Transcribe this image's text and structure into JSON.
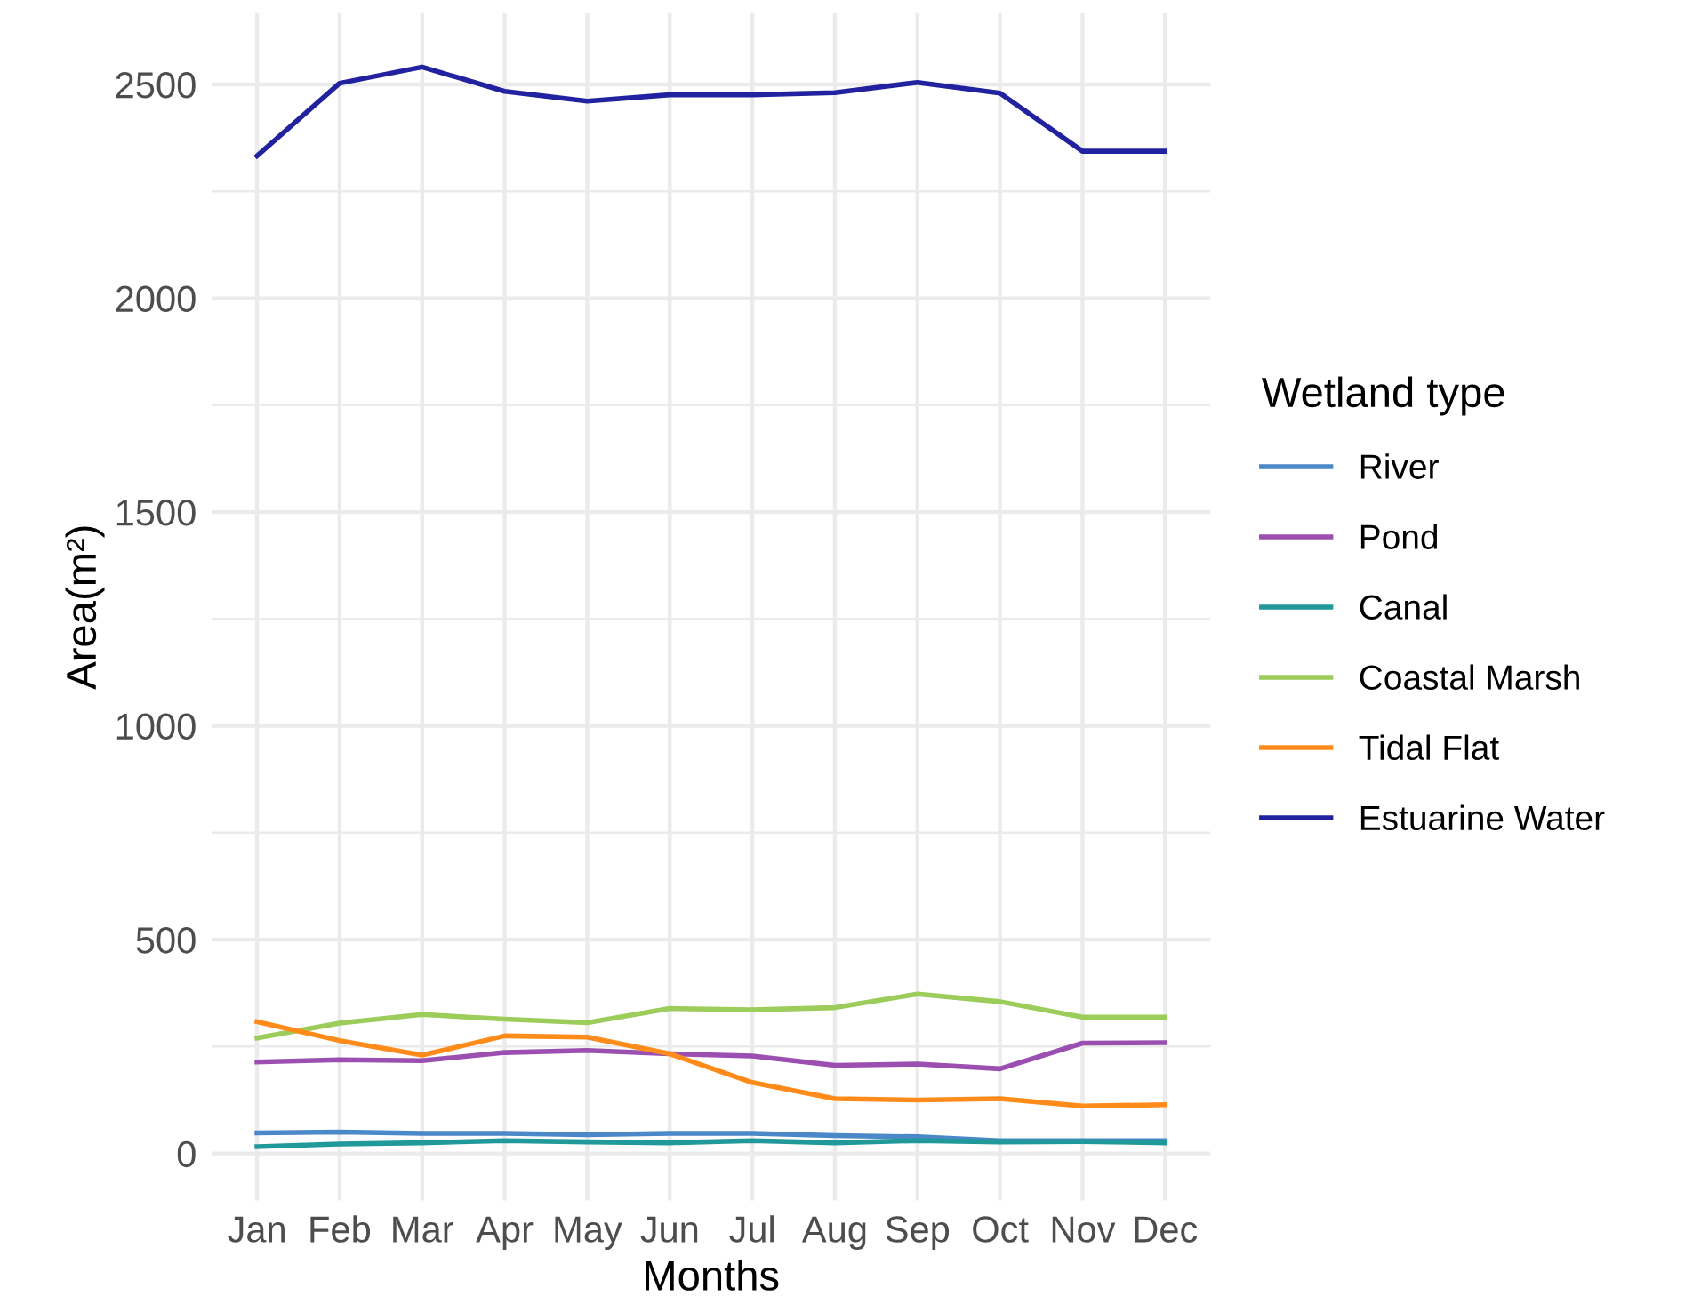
{
  "chart_data": {
    "type": "line",
    "xlabel": "Months",
    "ylabel": "Area(m²)",
    "legend_title": "Wetland type",
    "legend": "right",
    "grid": true,
    "categories": [
      "Jan",
      "Feb",
      "Mar",
      "Apr",
      "May",
      "Jun",
      "Jul",
      "Aug",
      "Sep",
      "Oct",
      "Nov",
      "Dec"
    ],
    "ylim": [
      -110,
      2667
    ],
    "yticks": [
      0,
      {
        "value": 250,
        "label": null
      },
      500,
      {
        "value": 750,
        "label": null
      },
      1000,
      {
        "value": 1250,
        "label": null
      },
      1500,
      {
        "value": 1750,
        "label": null
      },
      2000,
      {
        "value": 2250,
        "label": null
      },
      2500
    ],
    "series": [
      {
        "name": "River",
        "color": "#4a88c8",
        "values": [
          48,
          50,
          47,
          47,
          44,
          47,
          47,
          42,
          39,
          30,
          30,
          30
        ]
      },
      {
        "name": "Pond",
        "color": "#9b4fb0",
        "values": [
          214,
          219,
          217,
          236,
          241,
          233,
          228,
          206,
          209,
          198,
          258,
          259
        ]
      },
      {
        "name": "Canal",
        "color": "#21999a",
        "values": [
          16,
          22,
          25,
          30,
          27,
          25,
          30,
          25,
          30,
          27,
          28,
          25
        ]
      },
      {
        "name": "Coastal Marsh",
        "color": "#9ccc5a",
        "values": [
          270,
          305,
          325,
          314,
          306,
          339,
          336,
          341,
          373,
          355,
          319,
          319
        ]
      },
      {
        "name": "Tidal Flat",
        "color": "#ff8c1a",
        "values": [
          308,
          264,
          230,
          275,
          272,
          233,
          166,
          128,
          125,
          128,
          111,
          114
        ]
      },
      {
        "name": "Estuarine Water",
        "color": "#2222a0",
        "values": [
          2333,
          2503,
          2541,
          2484,
          2461,
          2476,
          2476,
          2481,
          2505,
          2480,
          2344,
          2344
        ]
      }
    ]
  }
}
